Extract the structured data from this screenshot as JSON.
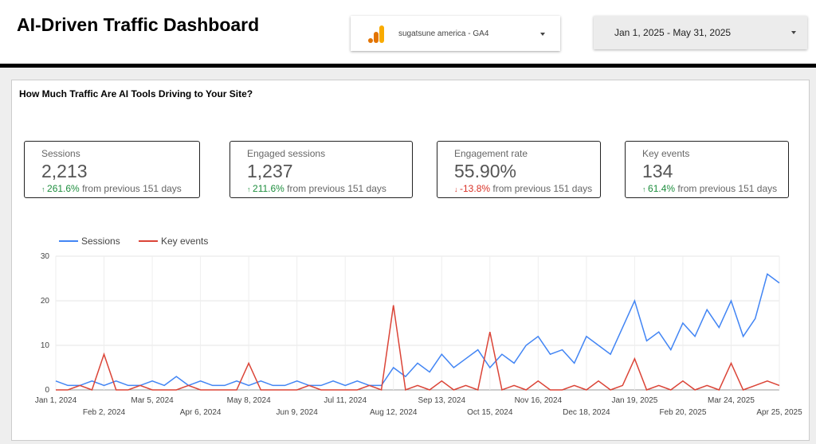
{
  "header": {
    "title": "AI-Driven Traffic Dashboard",
    "data_source": "sugatsune america - GA4",
    "date_range": "Jan 1, 2025 - May 31, 2025"
  },
  "section_title": "How Much Traffic Are AI Tools Driving to Your Site?",
  "kpis": [
    {
      "label": "Sessions",
      "value": "2,213",
      "change": "261.6%",
      "direction": "up",
      "note": "from previous 151 days"
    },
    {
      "label": "Engaged sessions",
      "value": "1,237",
      "change": "211.6%",
      "direction": "up",
      "note": "from previous 151 days"
    },
    {
      "label": "Engagement rate",
      "value": "55.90%",
      "change": "-13.8%",
      "direction": "down",
      "note": "from previous 151 days"
    },
    {
      "label": "Key events",
      "value": "134",
      "change": "61.4%",
      "direction": "up",
      "note": "from previous 151 days"
    }
  ],
  "chart_data": {
    "type": "line",
    "x": [
      "Jan 1, 2024",
      "Jan 9, 2024",
      "Jan 17, 2024",
      "Jan 25, 2024",
      "Feb 2, 2024",
      "Feb 10, 2024",
      "Feb 18, 2024",
      "Feb 26, 2024",
      "Mar 5, 2024",
      "Mar 13, 2024",
      "Mar 21, 2024",
      "Mar 29, 2024",
      "Apr 6, 2024",
      "Apr 14, 2024",
      "Apr 22, 2024",
      "Apr 30, 2024",
      "May 8, 2024",
      "May 16, 2024",
      "May 24, 2024",
      "Jun 1, 2024",
      "Jun 9, 2024",
      "Jun 17, 2024",
      "Jun 25, 2024",
      "Jul 3, 2024",
      "Jul 11, 2024",
      "Jul 19, 2024",
      "Jul 27, 2024",
      "Aug 4, 2024",
      "Aug 12, 2024",
      "Aug 20, 2024",
      "Aug 28, 2024",
      "Sep 5, 2024",
      "Sep 13, 2024",
      "Sep 21, 2024",
      "Sep 29, 2024",
      "Oct 7, 2024",
      "Oct 15, 2024",
      "Oct 23, 2024",
      "Oct 31, 2024",
      "Nov 8, 2024",
      "Nov 16, 2024",
      "Nov 24, 2024",
      "Dec 2, 2024",
      "Dec 10, 2024",
      "Dec 18, 2024",
      "Dec 26, 2024",
      "Jan 3, 2025",
      "Jan 11, 2025",
      "Jan 19, 2025",
      "Jan 27, 2025",
      "Feb 4, 2025",
      "Feb 12, 2025",
      "Feb 20, 2025",
      "Feb 28, 2025",
      "Mar 8, 2025",
      "Mar 16, 2025",
      "Mar 24, 2025",
      "Apr 1, 2025",
      "Apr 9, 2025",
      "Apr 17, 2025",
      "Apr 25, 2025"
    ],
    "series": [
      {
        "name": "Sessions",
        "color": "#4285f4",
        "values": [
          2,
          1,
          1,
          2,
          1,
          2,
          1,
          1,
          2,
          1,
          3,
          1,
          2,
          1,
          1,
          2,
          1,
          2,
          1,
          1,
          2,
          1,
          1,
          2,
          1,
          2,
          1,
          1,
          5,
          3,
          6,
          4,
          8,
          5,
          7,
          9,
          5,
          8,
          6,
          10,
          12,
          8,
          9,
          6,
          12,
          10,
          8,
          14,
          20,
          11,
          13,
          9,
          15,
          12,
          18,
          14,
          20,
          12,
          16,
          26,
          24
        ]
      },
      {
        "name": "Key events",
        "color": "#db4437",
        "values": [
          0,
          0,
          1,
          0,
          8,
          0,
          0,
          1,
          0,
          0,
          0,
          1,
          0,
          0,
          0,
          0,
          6,
          0,
          0,
          0,
          0,
          1,
          0,
          0,
          0,
          0,
          1,
          0,
          19,
          0,
          1,
          0,
          2,
          0,
          1,
          0,
          13,
          0,
          1,
          0,
          2,
          0,
          0,
          1,
          0,
          2,
          0,
          1,
          7,
          0,
          1,
          0,
          2,
          0,
          1,
          0,
          6,
          0,
          1,
          2,
          1
        ]
      }
    ],
    "xlim": [
      "Jan 1, 2024",
      "Apr 25, 2025"
    ],
    "xticks": [
      "Jan 1, 2024",
      "Feb 2, 2024",
      "Mar 5, 2024",
      "Apr 6, 2024",
      "May 8, 2024",
      "Jun 9, 2024",
      "Jul 11, 2024",
      "Aug 12, 2024",
      "Sep 13, 2024",
      "Oct 15, 2024",
      "Nov 16, 2024",
      "Dec 18, 2024",
      "Jan 19, 2025",
      "Feb 20, 2025",
      "Mar 24, 2025",
      "Apr 25, 2025"
    ],
    "ylim": [
      0,
      30
    ],
    "yticks": [
      0,
      10,
      20,
      30
    ],
    "grid": true,
    "legend": "top-left"
  }
}
